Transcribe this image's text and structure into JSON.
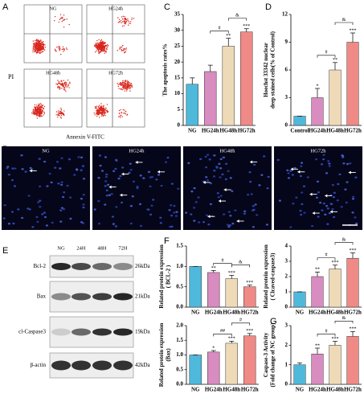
{
  "panel_labels": [
    "A",
    "B",
    "C",
    "D",
    "E",
    "F",
    "G"
  ],
  "flow": {
    "ylabel": "PI",
    "xlabel": "Annexin V-FITC",
    "plots": [
      "NG",
      "HG24h",
      "HG48h",
      "HG72h"
    ]
  },
  "microscopy": {
    "panels": [
      "NG",
      "HG24h",
      "HG48h",
      "HG72h"
    ]
  },
  "blot": {
    "lanes": [
      "NG",
      "24H",
      "48H",
      "72H"
    ],
    "rows": [
      {
        "name": "Bcl-2",
        "size": "26kDa"
      },
      {
        "name": "Bax",
        "size": "21kDa"
      },
      {
        "name": "cl-Caspase3",
        "size": "19kDa"
      },
      {
        "name": "β-actin",
        "size": "42kDa"
      }
    ]
  },
  "chart_data": [
    {
      "type": "bar",
      "ylabel": [
        "The apoptosis rates%"
      ],
      "categories": [
        "NG",
        "HG24h",
        "HG48h",
        "HG72h"
      ],
      "values": [
        13,
        17,
        25,
        29.5
      ],
      "errors": [
        2,
        2,
        2.5,
        1
      ],
      "colors": [
        "#4fb9dc",
        "#d98cc0",
        "#efdab8",
        "#f08a86"
      ],
      "ylim": [
        0,
        35
      ],
      "yticks": [
        0,
        5,
        10,
        15,
        20,
        25,
        30,
        35
      ],
      "stars": [
        null,
        null,
        "**",
        "***"
      ],
      "brackets": [
        {
          "label": "#",
          "between": [
            "HG24h",
            "HG48h"
          ]
        },
        {
          "label": "&",
          "between": [
            "HG48h",
            "HG72h"
          ]
        }
      ]
    },
    {
      "type": "bar",
      "ylabel": [
        "Hoechst 33342 nuclear",
        "deep stained cells(% of Control)"
      ],
      "categories": [
        "Control",
        "HG24h",
        "HG48h",
        "HG72h"
      ],
      "values": [
        1,
        3,
        6,
        9
      ],
      "errors": [
        0,
        1,
        0.8,
        1
      ],
      "colors": [
        "#4fb9dc",
        "#d98cc0",
        "#efdab8",
        "#f08a86"
      ],
      "ylim": [
        0,
        12
      ],
      "yticks": [
        0,
        3,
        6,
        9,
        12
      ],
      "stars": [
        null,
        "*",
        "**",
        "***"
      ],
      "brackets": [
        {
          "label": "#",
          "between": [
            "HG24h",
            "HG48h"
          ]
        },
        {
          "label": "&",
          "between": [
            "HG48h",
            "HG72h"
          ]
        }
      ]
    },
    {
      "type": "bar",
      "ylabel": [
        "Related protein expression",
        "( BCL-2 )"
      ],
      "categories": [
        "NG",
        "HG24h",
        "HG48h",
        "HG72h"
      ],
      "values": [
        1,
        0.85,
        0.7,
        0.5
      ],
      "errors": [
        0,
        0.05,
        0.08,
        0.04
      ],
      "colors": [
        "#4fb9dc",
        "#d98cc0",
        "#efdab8",
        "#f08a86"
      ],
      "ylim": [
        0,
        1.5
      ],
      "yticks": [
        {
          "value": 0,
          "label": "0.0"
        },
        0.5,
        {
          "value": 1,
          "label": "1.0"
        },
        1.5
      ],
      "stars": [
        null,
        "**",
        "***",
        "***"
      ],
      "brackets": [
        {
          "label": "#",
          "between": [
            "HG24h",
            "HG48h"
          ]
        },
        {
          "label": "&",
          "between": [
            "HG48h",
            "HG72h"
          ]
        }
      ]
    },
    {
      "type": "bar",
      "ylabel": [
        "Related protein expression",
        "( Clcaved-caspase3)"
      ],
      "categories": [
        "NG",
        "HG24h",
        "HG48h",
        "HG72h"
      ],
      "values": [
        1,
        2,
        2.5,
        3.2
      ],
      "errors": [
        0,
        0.3,
        0.25,
        0.35
      ],
      "colors": [
        "#4fb9dc",
        "#d98cc0",
        "#efdab8",
        "#f08a86"
      ],
      "ylim": [
        0,
        4
      ],
      "yticks": [
        0,
        1,
        2,
        3,
        4
      ],
      "stars": [
        null,
        "**",
        "***",
        "***"
      ],
      "brackets": [
        {
          "label": "#",
          "between": [
            "HG24h",
            "HG48h"
          ]
        },
        {
          "label": "&",
          "between": [
            "HG48h",
            "HG72h"
          ]
        }
      ]
    },
    {
      "type": "bar",
      "ylabel": [
        "Related protein expression",
        "(Bax)"
      ],
      "categories": [
        "NG",
        "HG24h",
        "HG48h",
        "HG72h"
      ],
      "values": [
        1,
        1.1,
        1.4,
        1.65
      ],
      "errors": [
        0,
        0.05,
        0.07,
        0.08
      ],
      "colors": [
        "#4fb9dc",
        "#d98cc0",
        "#efdab8",
        "#f08a86"
      ],
      "ylim": [
        0,
        2
      ],
      "yticks": [
        {
          "value": 0,
          "label": "0.0"
        },
        0.5,
        {
          "value": 1,
          "label": "1.0"
        },
        1.5,
        {
          "value": 2,
          "label": "2.0"
        }
      ],
      "stars": [
        null,
        "*",
        "***",
        "***"
      ],
      "brackets": [
        {
          "label": "##",
          "between": [
            "HG24h",
            "HG48h"
          ]
        },
        {
          "label": "#",
          "between": [
            "HG48h",
            "HG72h"
          ]
        }
      ]
    },
    {
      "type": "bar",
      "ylabel": [
        "Caspase-3 Activity",
        "(Fold change of NC group)"
      ],
      "categories": [
        "NG",
        "HG24h",
        "HG48h",
        "HG72h"
      ],
      "values": [
        1,
        1.55,
        2,
        2.45
      ],
      "errors": [
        0.1,
        0.3,
        0.2,
        0.25
      ],
      "colors": [
        "#4fb9dc",
        "#d98cc0",
        "#efdab8",
        "#f08a86"
      ],
      "ylim": [
        0,
        3
      ],
      "yticks": [
        0,
        1,
        2,
        3
      ],
      "stars": [
        null,
        "**",
        "***",
        "***"
      ],
      "brackets": [
        {
          "label": "#",
          "between": [
            "HG24h",
            "HG48h"
          ]
        },
        {
          "label": "&",
          "between": [
            "HG48h",
            "HG72h"
          ]
        }
      ]
    }
  ]
}
